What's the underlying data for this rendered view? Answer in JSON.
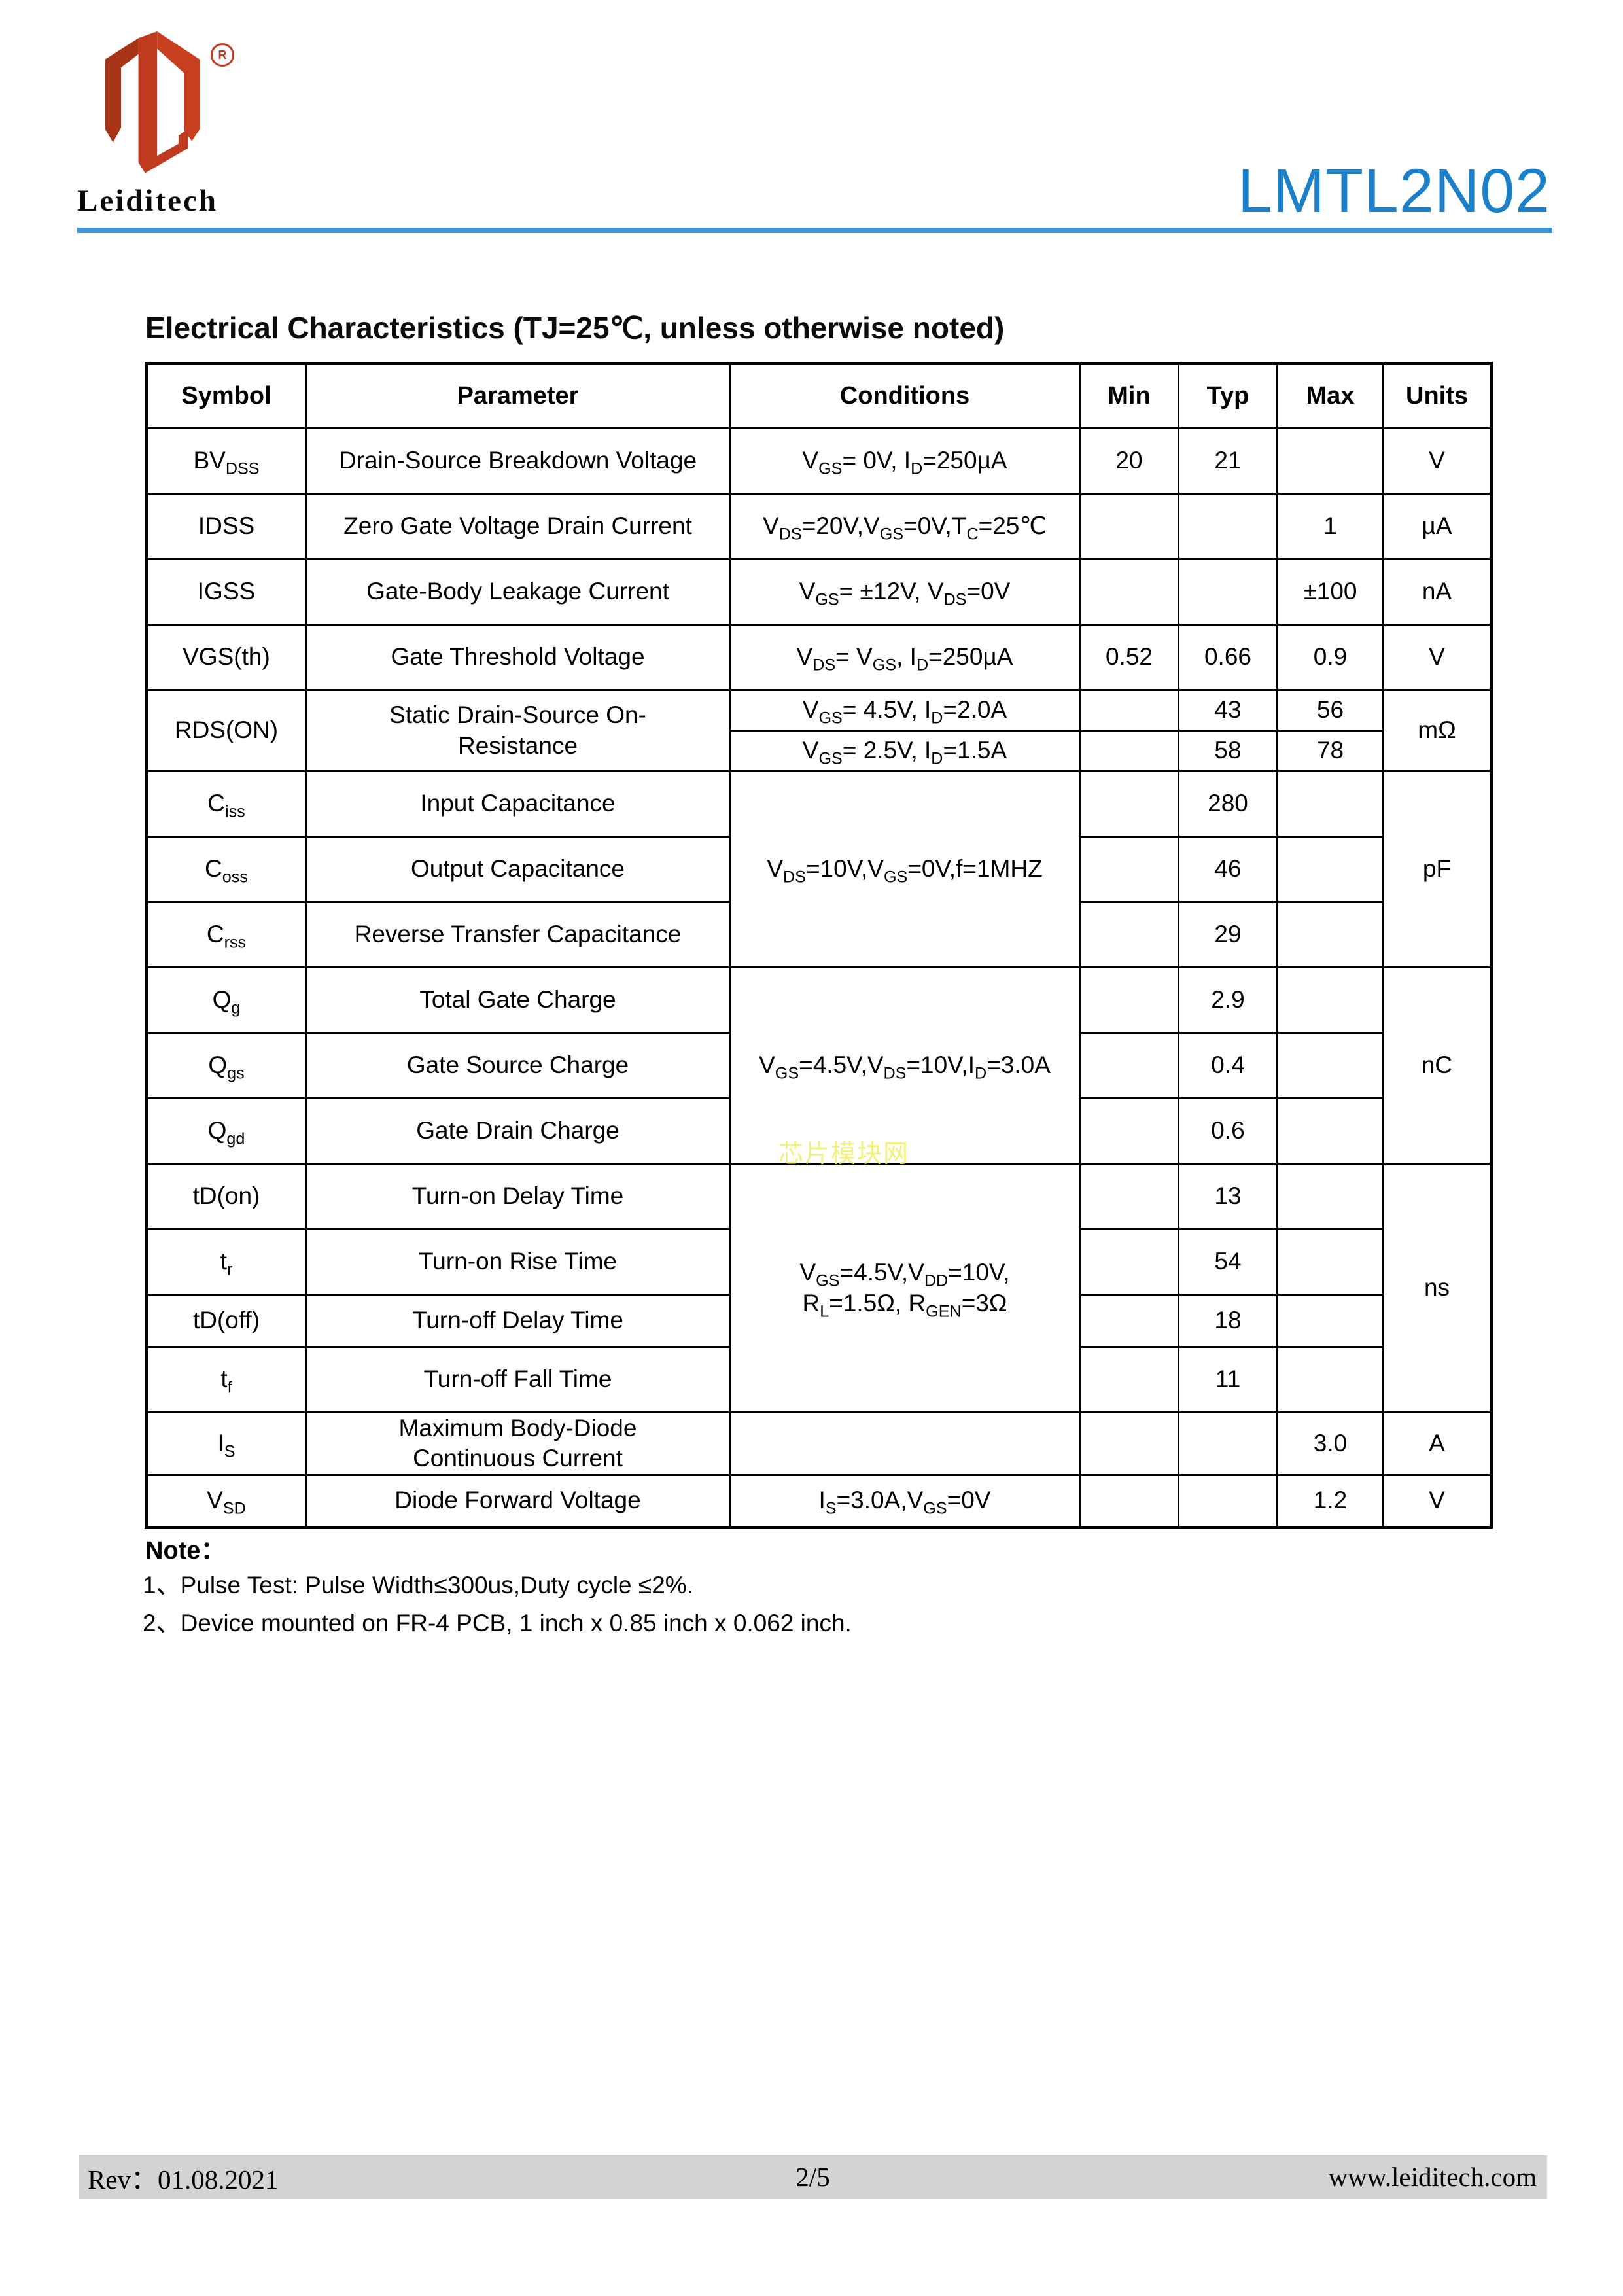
{
  "header": {
    "brand": "Leiditech",
    "registered_mark": "R",
    "product_title": "LMTL2N02"
  },
  "section_heading": "Electrical Characteristics (TJ=25℃, unless otherwise noted)",
  "table": {
    "headers": [
      "Symbol",
      "Parameter",
      "Conditions",
      "Min",
      "Typ",
      "Max",
      "Units"
    ],
    "rows": [
      {
        "cells": [
          {
            "t": "BV~DSS~"
          },
          {
            "t": "Drain-Source Breakdown Voltage"
          },
          {
            "t": "V~GS~= 0V, I~D~=250µA"
          },
          {
            "t": "20"
          },
          {
            "t": "21"
          },
          {
            "t": ""
          },
          {
            "t": "V"
          }
        ]
      },
      {
        "cells": [
          {
            "t": "IDSS"
          },
          {
            "t": "Zero Gate Voltage Drain Current"
          },
          {
            "t": "V~DS~=20V,V~GS~=0V,T~C~=25℃"
          },
          {
            "t": ""
          },
          {
            "t": ""
          },
          {
            "t": "1"
          },
          {
            "t": "µA"
          }
        ]
      },
      {
        "cells": [
          {
            "t": "IGSS"
          },
          {
            "t": "Gate-Body Leakage Current"
          },
          {
            "t": "V~GS~= ±12V, V~DS~=0V"
          },
          {
            "t": ""
          },
          {
            "t": ""
          },
          {
            "t": "±100"
          },
          {
            "t": "nA"
          }
        ]
      },
      {
        "cells": [
          {
            "t": "VGS(th)"
          },
          {
            "t": "Gate Threshold Voltage"
          },
          {
            "t": "V~DS~= V~GS~, I~D~=250µA"
          },
          {
            "t": "0.52"
          },
          {
            "t": "0.66"
          },
          {
            "t": "0.9"
          },
          {
            "t": "V"
          }
        ]
      },
      {
        "cells": [
          {
            "t": "RDS(ON)",
            "rowspan": 2
          },
          {
            "t": "Static Drain-Source On-\nResistance",
            "rowspan": 2
          },
          {
            "t": "V~GS~= 4.5V, I~D~=2.0A"
          },
          {
            "t": ""
          },
          {
            "t": "43"
          },
          {
            "t": "56"
          },
          {
            "t": "mΩ",
            "rowspan": 2
          }
        ]
      },
      {
        "cells": [
          {
            "t": "V~GS~= 2.5V, I~D~=1.5A"
          },
          {
            "t": ""
          },
          {
            "t": "58"
          },
          {
            "t": "78"
          }
        ]
      },
      {
        "cells": [
          {
            "t": "C~iss~"
          },
          {
            "t": "Input Capacitance"
          },
          {
            "t": "V~DS~=10V,V~GS~=0V,f=1MHZ",
            "rowspan": 3
          },
          {
            "t": ""
          },
          {
            "t": "280"
          },
          {
            "t": ""
          },
          {
            "t": "pF",
            "rowspan": 3
          }
        ]
      },
      {
        "cells": [
          {
            "t": "C~oss~"
          },
          {
            "t": "Output Capacitance"
          },
          {
            "t": ""
          },
          {
            "t": "46"
          },
          {
            "t": ""
          }
        ]
      },
      {
        "cells": [
          {
            "t": "C~rss~"
          },
          {
            "t": "Reverse Transfer Capacitance"
          },
          {
            "t": ""
          },
          {
            "t": "29"
          },
          {
            "t": ""
          }
        ]
      },
      {
        "cells": [
          {
            "t": "Q~g~"
          },
          {
            "t": "Total Gate Charge"
          },
          {
            "t": "V~GS~=4.5V,V~DS~=10V,I~D~=3.0A",
            "rowspan": 3
          },
          {
            "t": ""
          },
          {
            "t": "2.9"
          },
          {
            "t": ""
          },
          {
            "t": "nC",
            "rowspan": 3
          }
        ]
      },
      {
        "cells": [
          {
            "t": "Q~gs~"
          },
          {
            "t": "Gate Source Charge"
          },
          {
            "t": ""
          },
          {
            "t": "0.4"
          },
          {
            "t": ""
          }
        ]
      },
      {
        "cells": [
          {
            "t": "Q~gd~"
          },
          {
            "t": "Gate Drain Charge"
          },
          {
            "t": ""
          },
          {
            "t": "0.6"
          },
          {
            "t": ""
          }
        ]
      },
      {
        "cells": [
          {
            "t": "tD(on)"
          },
          {
            "t": "Turn-on Delay Time"
          },
          {
            "t": "V~GS~=4.5V,V~DD~=10V,\nR~L~=1.5Ω, R~GEN~=3Ω",
            "rowspan": 4
          },
          {
            "t": ""
          },
          {
            "t": "13"
          },
          {
            "t": ""
          },
          {
            "t": "ns",
            "rowspan": 4
          }
        ]
      },
      {
        "cells": [
          {
            "t": "t~r~"
          },
          {
            "t": "Turn-on Rise Time"
          },
          {
            "t": ""
          },
          {
            "t": "54"
          },
          {
            "t": ""
          }
        ]
      },
      {
        "cells": [
          {
            "t": "tD(off)"
          },
          {
            "t": "Turn-off Delay Time"
          },
          {
            "t": ""
          },
          {
            "t": "18"
          },
          {
            "t": ""
          }
        ]
      },
      {
        "cells": [
          {
            "t": "t~f~"
          },
          {
            "t": "Turn-off Fall Time"
          },
          {
            "t": ""
          },
          {
            "t": "11"
          },
          {
            "t": ""
          }
        ]
      },
      {
        "cells": [
          {
            "t": "I~S~"
          },
          {
            "t": "Maximum Body-Diode\nContinuous Current"
          },
          {
            "t": ""
          },
          {
            "t": ""
          },
          {
            "t": ""
          },
          {
            "t": "3.0"
          },
          {
            "t": "A"
          }
        ]
      },
      {
        "cells": [
          {
            "t": "V~SD~"
          },
          {
            "t": "Diode Forward Voltage"
          },
          {
            "t": "I~S~=3.0A,V~GS~=0V"
          },
          {
            "t": ""
          },
          {
            "t": ""
          },
          {
            "t": "1.2"
          },
          {
            "t": "V"
          }
        ]
      }
    ]
  },
  "notes": {
    "title": "Note：",
    "line1": "1、Pulse Test: Pulse Width≤300us,Duty cycle ≤2%.",
    "line2": "2、Device mounted on FR-4 PCB, 1 inch x 0.85 inch x 0.062 inch."
  },
  "watermark": "芯片模块网",
  "footer": {
    "revision": "Rev：01.08.2021",
    "page_number": "2/5",
    "website": "www.leiditech.com"
  },
  "colors": {
    "title_blue": "#1b80c9",
    "divider_blue": "#3e97d2",
    "logo_red": "#c33a1c",
    "footer_gray": "#d3d3d3",
    "watermark_yellow": "#f2f272"
  }
}
